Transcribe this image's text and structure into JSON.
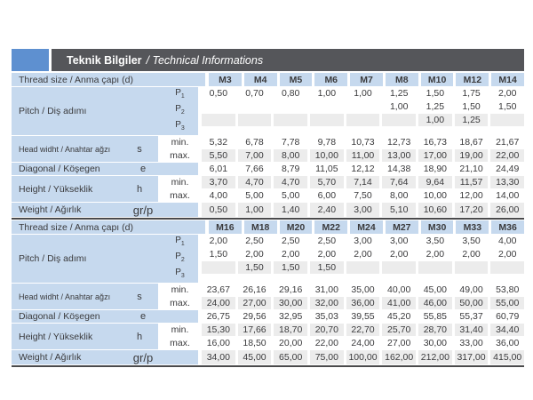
{
  "header": {
    "title_tr": "Teknik Bilgiler",
    "title_en": "/ Technical Informations"
  },
  "row_labels": {
    "thread": "Thread size / Anma çapı (d)",
    "pitch": "Pitch / Diş adımı",
    "head": "Head widht / Anahtar ağzı",
    "diagonal": "Diagonal / Köşegen",
    "height": "Height / Yükseklik",
    "weight": "Weight / Ağırlık",
    "min": "min.",
    "max": "max.",
    "symbols": {
      "pitch": [
        {
          "base": "P",
          "sub": "1"
        },
        {
          "base": "P",
          "sub": "2"
        },
        {
          "base": "P",
          "sub": "3"
        }
      ],
      "head": "s",
      "diagonal": "e",
      "height": "h",
      "weight": "gr/p"
    }
  },
  "colors": {
    "label_bg": "#c6d9ee",
    "stripe_bg": "#ececec",
    "header_bar": "#55565a",
    "header_box_blue": "#5e90d0",
    "table_rule": "#4a4a4c",
    "text": "#3a3a3c"
  },
  "tables": [
    {
      "columns": [
        "M3",
        "M4",
        "M5",
        "M6",
        "M7",
        "M8",
        "M10",
        "M12",
        "M14"
      ],
      "rows": {
        "p1": [
          "0,50",
          "0,70",
          "0,80",
          "1,00",
          "1,00",
          "1,25",
          "1,50",
          "1,75",
          "2,00"
        ],
        "p2": [
          "",
          "",
          "",
          "",
          "",
          "1,00",
          "1,25",
          "1,50",
          "1,50"
        ],
        "p3": [
          "",
          "",
          "",
          "",
          "",
          "",
          "1,00",
          "1,25",
          ""
        ],
        "s_min": [
          "5,32",
          "6,78",
          "7,78",
          "9,78",
          "10,73",
          "12,73",
          "16,73",
          "18,67",
          "21,67"
        ],
        "s_max": [
          "5,50",
          "7,00",
          "8,00",
          "10,00",
          "11,00",
          "13,00",
          "17,00",
          "19,00",
          "22,00"
        ],
        "e": [
          "6,01",
          "7,66",
          "8,79",
          "11,05",
          "12,12",
          "14,38",
          "18,90",
          "21,10",
          "24,49"
        ],
        "h_min": [
          "3,70",
          "4,70",
          "4,70",
          "5,70",
          "7,14",
          "7,64",
          "9,64",
          "11,57",
          "13,30"
        ],
        "h_max": [
          "4,00",
          "5,00",
          "5,00",
          "6,00",
          "7,50",
          "8,00",
          "10,00",
          "12,00",
          "14,00"
        ],
        "weight": [
          "0,50",
          "1,00",
          "1,40",
          "2,40",
          "3,00",
          "5,10",
          "10,60",
          "17,20",
          "26,00"
        ]
      }
    },
    {
      "columns": [
        "M16",
        "M18",
        "M20",
        "M22",
        "M24",
        "M27",
        "M30",
        "M33",
        "M36"
      ],
      "rows": {
        "p1": [
          "2,00",
          "2,50",
          "2,50",
          "2,50",
          "3,00",
          "3,00",
          "3,50",
          "3,50",
          "4,00"
        ],
        "p2": [
          "1,50",
          "2,00",
          "2,00",
          "2,00",
          "2,00",
          "2,00",
          "2,00",
          "2,00",
          "2,00"
        ],
        "p3": [
          "",
          "1,50",
          "1,50",
          "1,50",
          "",
          "",
          "",
          "",
          ""
        ],
        "s_min": [
          "23,67",
          "26,16",
          "29,16",
          "31,00",
          "35,00",
          "40,00",
          "45,00",
          "49,00",
          "53,80"
        ],
        "s_max": [
          "24,00",
          "27,00",
          "30,00",
          "32,00",
          "36,00",
          "41,00",
          "46,00",
          "50,00",
          "55,00"
        ],
        "e": [
          "26,75",
          "29,56",
          "32,95",
          "35,03",
          "39,55",
          "45,20",
          "55,85",
          "55,37",
          "60,79"
        ],
        "h_min": [
          "15,30",
          "17,66",
          "18,70",
          "20,70",
          "22,70",
          "25,70",
          "28,70",
          "31,40",
          "34,40"
        ],
        "h_max": [
          "16,00",
          "18,50",
          "20,00",
          "22,00",
          "24,00",
          "27,00",
          "30,00",
          "33,00",
          "36,00"
        ],
        "weight": [
          "34,00",
          "45,00",
          "65,00",
          "75,00",
          "100,00",
          "162,00",
          "212,00",
          "317,00",
          "415,00"
        ]
      }
    }
  ]
}
